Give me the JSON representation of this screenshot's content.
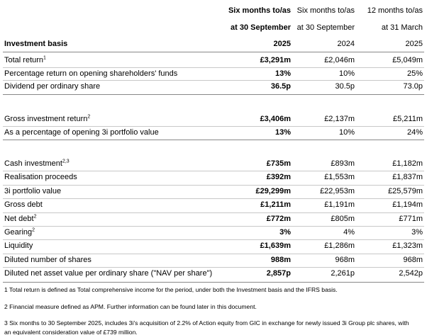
{
  "header": {
    "basis": "Investment basis",
    "columns": [
      {
        "line1": "Six months to/as",
        "line2": "at 30 September",
        "year": "2025"
      },
      {
        "line1": "Six months to/as",
        "line2": "at 30 September",
        "year": "2024"
      },
      {
        "line1": "12 months to/as",
        "line2": "at 31 March",
        "year": "2025"
      }
    ]
  },
  "sections": [
    {
      "rows": [
        {
          "label": "Total return",
          "note": "1",
          "values": [
            "£3,291m",
            "£2,046m",
            "£5,049m"
          ]
        },
        {
          "label": "Percentage return on opening shareholders' funds",
          "values": [
            "13%",
            "10%",
            "25%"
          ]
        },
        {
          "label": "Dividend per ordinary share",
          "values": [
            "36.5p",
            "30.5p",
            "73.0p"
          ]
        }
      ]
    },
    {
      "rows": [
        {
          "label": "Gross investment return",
          "note": "2",
          "values": [
            "£3,406m",
            "£2,137m",
            "£5,211m"
          ]
        },
        {
          "label": "As a percentage of opening 3i portfolio value",
          "values": [
            "13%",
            "10%",
            "24%"
          ]
        }
      ]
    },
    {
      "rows": [
        {
          "label": "Cash investment",
          "note": "2,3",
          "values": [
            "£735m",
            "£893m",
            "£1,182m"
          ]
        },
        {
          "label": "Realisation proceeds",
          "values": [
            "£392m",
            "£1,553m",
            "£1,837m"
          ]
        },
        {
          "label": "3i portfolio value",
          "values": [
            "£29,299m",
            "£22,953m",
            "£25,579m"
          ]
        },
        {
          "label": "Gross debt",
          "values": [
            "£1,211m",
            "£1,191m",
            "£1,194m"
          ]
        },
        {
          "label": "Net debt",
          "note": "2",
          "values": [
            "£772m",
            "£805m",
            "£771m"
          ]
        },
        {
          "label": "Gearing",
          "note": "2",
          "values": [
            "3%",
            "4%",
            "3%"
          ]
        },
        {
          "label": "Liquidity",
          "values": [
            "£1,639m",
            "£1,286m",
            "£1,323m"
          ]
        },
        {
          "label": "Diluted number of shares",
          "values": [
            "988m",
            "968m",
            "968m"
          ]
        },
        {
          "label": "Diluted net asset value per ordinary share (\"NAV per share\")",
          "values": [
            "2,857p",
            "2,261p",
            "2,542p"
          ]
        }
      ]
    }
  ],
  "footnotes": [
    "1 Total return is defined as Total comprehensive income for the period, under both the Investment basis and the IFRS basis.",
    "2 Financial measure defined as APM. Further information can be found later in this document.",
    "3 Six months to 30 September 2025, includes 3i's acquisition of 2.2% of Action equity from GIC in exchange for newly issued 3i Group plc shares, with an equivalent consideration value of £739 million."
  ]
}
